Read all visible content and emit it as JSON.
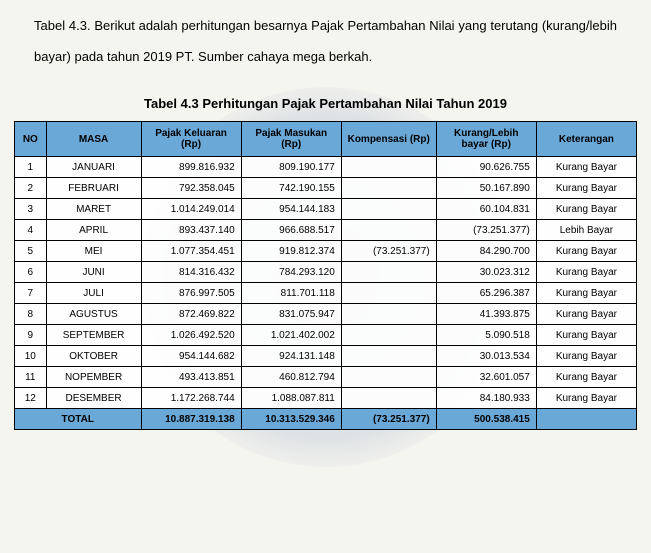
{
  "intro": "Tabel 4.3. Berikut adalah perhitungan besarnya Pajak Pertambahan Nilai yang terutang (kurang/lebih bayar) pada tahun 2019 PT. Sumber cahaya mega berkah.",
  "table_title": "Tabel 4.3 Perhitungan Pajak Pertambahan Nilai Tahun 2019",
  "headers": {
    "no": "NO",
    "masa": "MASA",
    "keluaran": "Pajak Keluaran (Rp)",
    "masukan": "Pajak Masukan (Rp)",
    "kompensasi": "Kompensasi (Rp)",
    "kurang": "Kurang/Lebih bayar (Rp)",
    "keterangan": "Keterangan"
  },
  "rows": [
    {
      "no": "1",
      "masa": "JANUARI",
      "keluaran": "899.816.932",
      "masukan": "809.190.177",
      "komp": "",
      "kurang": "90.626.755",
      "ket": "Kurang Bayar"
    },
    {
      "no": "2",
      "masa": "FEBRUARI",
      "keluaran": "792.358.045",
      "masukan": "742.190.155",
      "komp": "",
      "kurang": "50.167.890",
      "ket": "Kurang Bayar"
    },
    {
      "no": "3",
      "masa": "MARET",
      "keluaran": "1.014.249.014",
      "masukan": "954.144.183",
      "komp": "",
      "kurang": "60.104.831",
      "ket": "Kurang Bayar"
    },
    {
      "no": "4",
      "masa": "APRIL",
      "keluaran": "893.437.140",
      "masukan": "966.688.517",
      "komp": "",
      "kurang": "(73.251.377)",
      "ket": "Lebih Bayar"
    },
    {
      "no": "5",
      "masa": "MEI",
      "keluaran": "1.077.354.451",
      "masukan": "919.812.374",
      "komp": "(73.251.377)",
      "kurang": "84.290.700",
      "ket": "Kurang Bayar"
    },
    {
      "no": "6",
      "masa": "JUNI",
      "keluaran": "814.316.432",
      "masukan": "784.293.120",
      "komp": "",
      "kurang": "30.023.312",
      "ket": "Kurang Bayar"
    },
    {
      "no": "7",
      "masa": "JULI",
      "keluaran": "876.997.505",
      "masukan": "811.701.118",
      "komp": "",
      "kurang": "65.296.387",
      "ket": "Kurang Bayar"
    },
    {
      "no": "8",
      "masa": "AGUSTUS",
      "keluaran": "872.469.822",
      "masukan": "831.075.947",
      "komp": "",
      "kurang": "41.393.875",
      "ket": "Kurang Bayar"
    },
    {
      "no": "9",
      "masa": "SEPTEMBER",
      "keluaran": "1.026.492.520",
      "masukan": "1.021.402.002",
      "komp": "",
      "kurang": "5.090.518",
      "ket": "Kurang Bayar"
    },
    {
      "no": "10",
      "masa": "OKTOBER",
      "keluaran": "954.144.682",
      "masukan": "924.131.148",
      "komp": "",
      "kurang": "30.013.534",
      "ket": "Kurang Bayar"
    },
    {
      "no": "11",
      "masa": "NOPEMBER",
      "keluaran": "493.413.851",
      "masukan": "460.812.794",
      "komp": "",
      "kurang": "32.601.057",
      "ket": "Kurang Bayar"
    },
    {
      "no": "12",
      "masa": "DESEMBER",
      "keluaran": "1.172.268.744",
      "masukan": "1.088.087.811",
      "komp": "",
      "kurang": "84.180.933",
      "ket": "Kurang Bayar"
    }
  ],
  "total": {
    "label": "TOTAL",
    "keluaran": "10.887.319.138",
    "masukan": "10.313.529.346",
    "komp": "(73.251.377)",
    "kurang": "500.538.415",
    "ket": ""
  },
  "colors": {
    "header_bg": "#6aa8d8",
    "border": "#000000",
    "text": "#000000"
  },
  "fonts": {
    "body_size": 13,
    "table_size": 10
  }
}
